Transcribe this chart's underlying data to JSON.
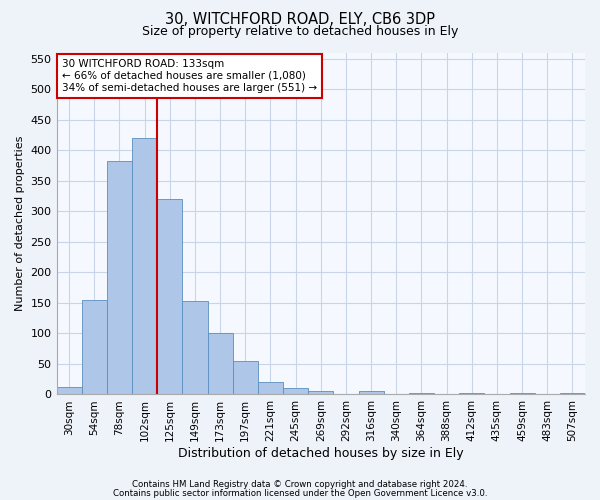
{
  "title1": "30, WITCHFORD ROAD, ELY, CB6 3DP",
  "title2": "Size of property relative to detached houses in Ely",
  "xlabel": "Distribution of detached houses by size in Ely",
  "ylabel": "Number of detached properties",
  "bar_values": [
    12,
    155,
    382,
    420,
    320,
    153,
    100,
    55,
    20,
    10,
    5,
    0,
    5,
    0,
    3,
    0,
    3,
    0,
    3,
    0,
    3
  ],
  "bar_labels": [
    "30sqm",
    "54sqm",
    "78sqm",
    "102sqm",
    "125sqm",
    "149sqm",
    "173sqm",
    "197sqm",
    "221sqm",
    "245sqm",
    "269sqm",
    "292sqm",
    "316sqm",
    "340sqm",
    "364sqm",
    "388sqm",
    "412sqm",
    "435sqm",
    "459sqm",
    "483sqm",
    "507sqm"
  ],
  "bar_color": "#aec6e8",
  "bar_edge_color": "#5a8fc0",
  "vline_color": "#cc0000",
  "vline_index": 3.5,
  "ylim": [
    0,
    560
  ],
  "yticks": [
    0,
    50,
    100,
    150,
    200,
    250,
    300,
    350,
    400,
    450,
    500,
    550
  ],
  "annotation_title": "30 WITCHFORD ROAD: 133sqm",
  "annotation_line1": "← 66% of detached houses are smaller (1,080)",
  "annotation_line2": "34% of semi-detached houses are larger (551) →",
  "footer1": "Contains HM Land Registry data © Crown copyright and database right 2024.",
  "footer2": "Contains public sector information licensed under the Open Government Licence v3.0.",
  "bg_color": "#eef2f9",
  "plot_bg_color": "#f5f8ff",
  "grid_color": "#c8d4e8"
}
